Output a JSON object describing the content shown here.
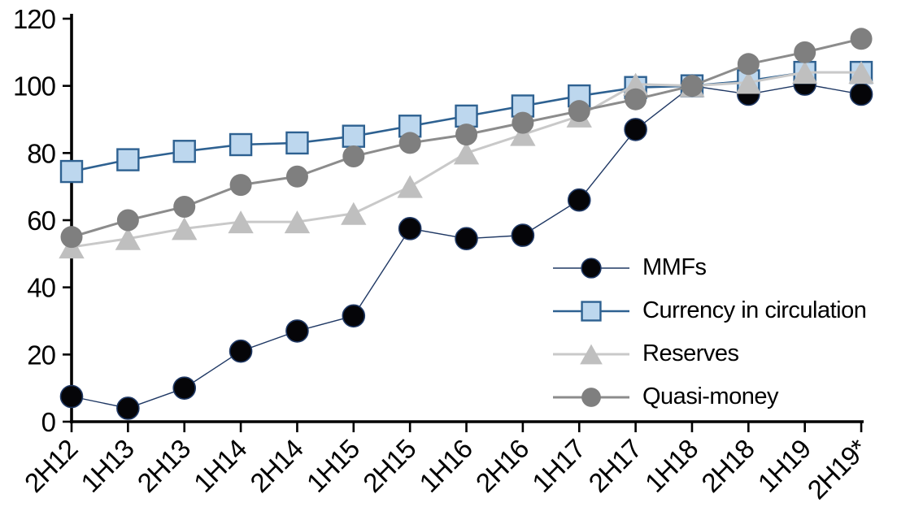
{
  "chart_data": {
    "type": "line",
    "title": "",
    "categories": [
      "2H12",
      "1H13",
      "2H13",
      "1H14",
      "2H14",
      "1H15",
      "2H15",
      "1H16",
      "2H16",
      "1H17",
      "2H17",
      "1H18",
      "2H18",
      "1H19",
      "2H19*"
    ],
    "series": [
      {
        "name": "MMFs",
        "marker": "circle",
        "marker_fill": "#050508",
        "marker_stroke": "#1F3864",
        "line_color": "#1F3864",
        "line_width": 1.4,
        "marker_size": 27,
        "values": [
          7.5,
          4,
          10,
          21,
          27,
          31.5,
          57.5,
          54.5,
          55.5,
          66,
          87,
          100,
          97.5,
          100.5,
          97.5
        ]
      },
      {
        "name": "Currency in circulation",
        "marker": "square",
        "marker_fill": "#BDD7EE",
        "marker_stroke": "#2E6191",
        "line_color": "#2E6191",
        "line_width": 2.6,
        "marker_size": 26,
        "values": [
          74.5,
          78,
          80.5,
          82.5,
          83,
          85,
          88,
          91,
          94,
          97,
          99.5,
          100,
          101.5,
          104,
          104
        ]
      },
      {
        "name": "Reserves",
        "marker": "triangle",
        "marker_fill": "#BFBFBF",
        "marker_stroke": "none",
        "line_color": "#C9C9C9",
        "line_width": 3,
        "marker_size": 28,
        "values": [
          52,
          54.5,
          57.5,
          59.5,
          59.5,
          62,
          70,
          80,
          85.5,
          91,
          100.5,
          100,
          101,
          104,
          104
        ]
      },
      {
        "name": "Quasi-money",
        "marker": "circle",
        "marker_fill": "#7F7F7F",
        "marker_stroke": "none",
        "line_color": "#8C8C8C",
        "line_width": 3,
        "marker_size": 27,
        "values": [
          55,
          60,
          64,
          70.5,
          73,
          79,
          83,
          85.5,
          89,
          92.5,
          96,
          100,
          106.5,
          110,
          114
        ]
      }
    ],
    "y_axis": {
      "min": 0,
      "max": 120,
      "step": 20,
      "tick_labels": [
        "0",
        "20",
        "40",
        "60",
        "80",
        "100",
        "120"
      ]
    },
    "x_axis": {
      "tick_labels": [
        "2H12",
        "1H13",
        "2H13",
        "1H14",
        "2H14",
        "1H15",
        "2H15",
        "1H16",
        "2H16",
        "1H17",
        "2H17",
        "1H18",
        "2H18",
        "1H19",
        "2H19*"
      ],
      "label_rotation_deg": -45
    },
    "legend_position": "inside-right-lower",
    "grid": false,
    "axis_color": "#000000",
    "text_color": "#000000",
    "background_color": "#FFFFFF"
  }
}
